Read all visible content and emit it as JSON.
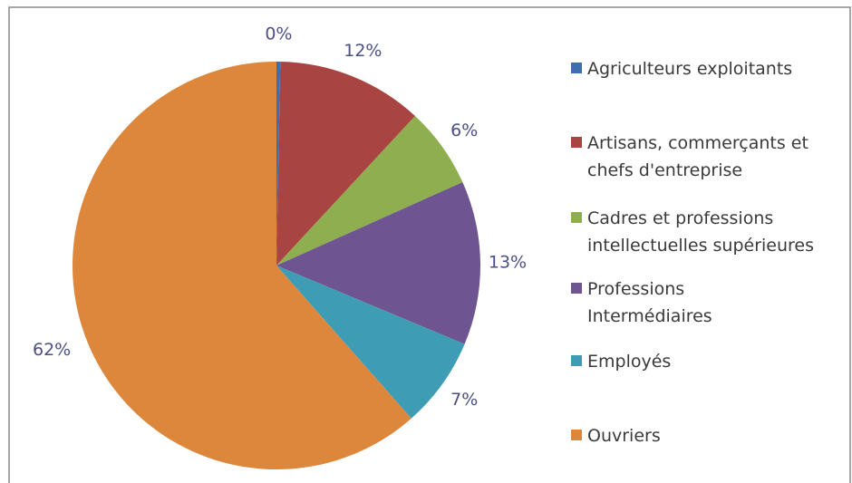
{
  "chart_data": {
    "type": "pie",
    "categories": [
      "Agriculteurs exploitants",
      "Artisans, commerçants et\nchefs d'entreprise",
      "Cadres et professions\nintellectuelles supérieures",
      "Professions\nIntermédiaires",
      "Employés",
      "Ouvriers"
    ],
    "values": [
      0.3,
      11.6,
      6.4,
      13,
      7.2,
      61.5
    ],
    "value_labels": [
      "0%",
      "12%",
      "6%",
      "13%",
      "7%",
      "62%"
    ],
    "colors": [
      "#3e6eb0",
      "#a84542",
      "#8fae4f",
      "#6e5592",
      "#3f9cb5",
      "#dc873c"
    ],
    "legend": "right"
  }
}
